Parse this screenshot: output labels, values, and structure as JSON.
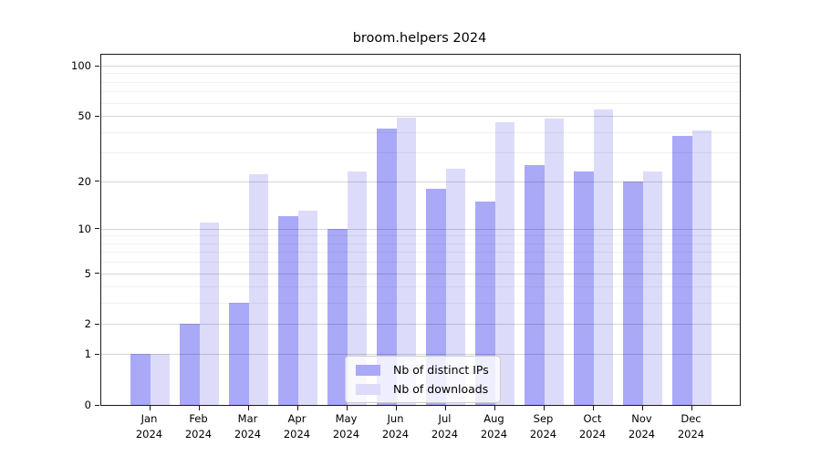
{
  "title": "broom.helpers 2024",
  "chart_data": {
    "type": "bar",
    "title": "broom.helpers 2024",
    "categories": [
      "Jan 2024",
      "Feb 2024",
      "Mar 2024",
      "Apr 2024",
      "May 2024",
      "Jun 2024",
      "Jul 2024",
      "Aug 2024",
      "Sep 2024",
      "Oct 2024",
      "Nov 2024",
      "Dec 2024"
    ],
    "x_tick_months": [
      "Jan",
      "Feb",
      "Mar",
      "Apr",
      "May",
      "Jun",
      "Jul",
      "Aug",
      "Sep",
      "Oct",
      "Nov",
      "Dec"
    ],
    "x_tick_year": "2024",
    "series": [
      {
        "name": "Nb of distinct IPs",
        "color": "#a9a9f8",
        "values": [
          1,
          2,
          3,
          12,
          10,
          42,
          18,
          15,
          25,
          23,
          20,
          38
        ]
      },
      {
        "name": "Nb of downloads",
        "color": "#dcdcfa",
        "values": [
          1,
          11,
          22,
          13,
          23,
          49,
          24,
          46,
          48,
          55,
          23,
          41
        ]
      }
    ],
    "ylabel": "",
    "xlabel": "",
    "yscale": "log1p",
    "ylim": [
      0,
      100
    ],
    "yticks": [
      0,
      1,
      2,
      5,
      10,
      20,
      50,
      100
    ],
    "yticks_minor": [
      3,
      4,
      6,
      7,
      8,
      9,
      30,
      40,
      60,
      70,
      80,
      90
    ],
    "grid": true,
    "legend_position": "lower center"
  }
}
